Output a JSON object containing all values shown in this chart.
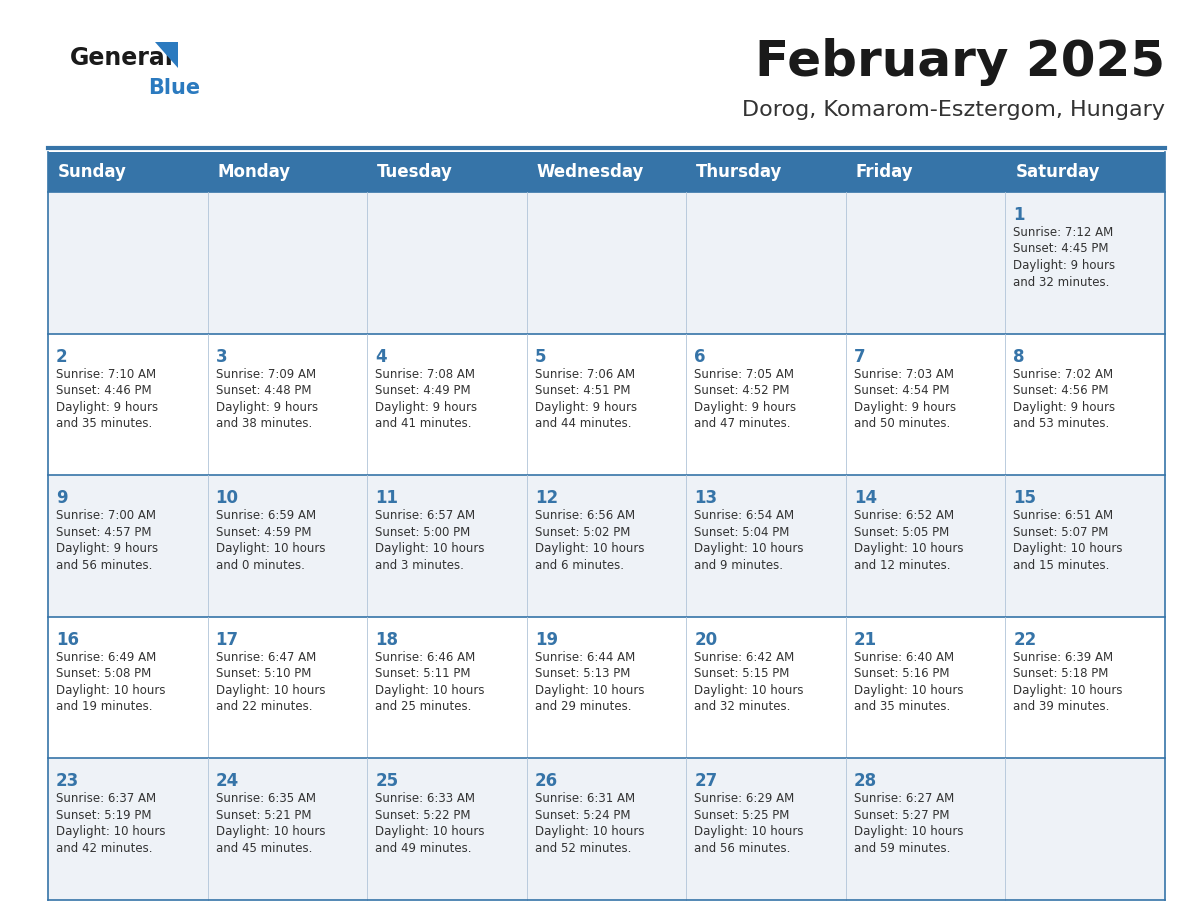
{
  "title": "February 2025",
  "subtitle": "Dorog, Komarom-Esztergom, Hungary",
  "days_of_week": [
    "Sunday",
    "Monday",
    "Tuesday",
    "Wednesday",
    "Thursday",
    "Friday",
    "Saturday"
  ],
  "header_bg": "#3674a8",
  "header_text": "#ffffff",
  "row_bg_odd": "#eef2f7",
  "row_bg_even": "#ffffff",
  "text_color": "#333333",
  "day_num_color": "#3674a8",
  "border_color": "#3674a8",
  "grid_line_color": "#b0c4d8",
  "title_color": "#1a1a1a",
  "subtitle_color": "#333333",
  "logo_general_color": "#1a1a1a",
  "logo_blue_color": "#2b7abf",
  "weeks": [
    [
      {
        "day": null,
        "info": ""
      },
      {
        "day": null,
        "info": ""
      },
      {
        "day": null,
        "info": ""
      },
      {
        "day": null,
        "info": ""
      },
      {
        "day": null,
        "info": ""
      },
      {
        "day": null,
        "info": ""
      },
      {
        "day": 1,
        "info": "Sunrise: 7:12 AM\nSunset: 4:45 PM\nDaylight: 9 hours\nand 32 minutes."
      }
    ],
    [
      {
        "day": 2,
        "info": "Sunrise: 7:10 AM\nSunset: 4:46 PM\nDaylight: 9 hours\nand 35 minutes."
      },
      {
        "day": 3,
        "info": "Sunrise: 7:09 AM\nSunset: 4:48 PM\nDaylight: 9 hours\nand 38 minutes."
      },
      {
        "day": 4,
        "info": "Sunrise: 7:08 AM\nSunset: 4:49 PM\nDaylight: 9 hours\nand 41 minutes."
      },
      {
        "day": 5,
        "info": "Sunrise: 7:06 AM\nSunset: 4:51 PM\nDaylight: 9 hours\nand 44 minutes."
      },
      {
        "day": 6,
        "info": "Sunrise: 7:05 AM\nSunset: 4:52 PM\nDaylight: 9 hours\nand 47 minutes."
      },
      {
        "day": 7,
        "info": "Sunrise: 7:03 AM\nSunset: 4:54 PM\nDaylight: 9 hours\nand 50 minutes."
      },
      {
        "day": 8,
        "info": "Sunrise: 7:02 AM\nSunset: 4:56 PM\nDaylight: 9 hours\nand 53 minutes."
      }
    ],
    [
      {
        "day": 9,
        "info": "Sunrise: 7:00 AM\nSunset: 4:57 PM\nDaylight: 9 hours\nand 56 minutes."
      },
      {
        "day": 10,
        "info": "Sunrise: 6:59 AM\nSunset: 4:59 PM\nDaylight: 10 hours\nand 0 minutes."
      },
      {
        "day": 11,
        "info": "Sunrise: 6:57 AM\nSunset: 5:00 PM\nDaylight: 10 hours\nand 3 minutes."
      },
      {
        "day": 12,
        "info": "Sunrise: 6:56 AM\nSunset: 5:02 PM\nDaylight: 10 hours\nand 6 minutes."
      },
      {
        "day": 13,
        "info": "Sunrise: 6:54 AM\nSunset: 5:04 PM\nDaylight: 10 hours\nand 9 minutes."
      },
      {
        "day": 14,
        "info": "Sunrise: 6:52 AM\nSunset: 5:05 PM\nDaylight: 10 hours\nand 12 minutes."
      },
      {
        "day": 15,
        "info": "Sunrise: 6:51 AM\nSunset: 5:07 PM\nDaylight: 10 hours\nand 15 minutes."
      }
    ],
    [
      {
        "day": 16,
        "info": "Sunrise: 6:49 AM\nSunset: 5:08 PM\nDaylight: 10 hours\nand 19 minutes."
      },
      {
        "day": 17,
        "info": "Sunrise: 6:47 AM\nSunset: 5:10 PM\nDaylight: 10 hours\nand 22 minutes."
      },
      {
        "day": 18,
        "info": "Sunrise: 6:46 AM\nSunset: 5:11 PM\nDaylight: 10 hours\nand 25 minutes."
      },
      {
        "day": 19,
        "info": "Sunrise: 6:44 AM\nSunset: 5:13 PM\nDaylight: 10 hours\nand 29 minutes."
      },
      {
        "day": 20,
        "info": "Sunrise: 6:42 AM\nSunset: 5:15 PM\nDaylight: 10 hours\nand 32 minutes."
      },
      {
        "day": 21,
        "info": "Sunrise: 6:40 AM\nSunset: 5:16 PM\nDaylight: 10 hours\nand 35 minutes."
      },
      {
        "day": 22,
        "info": "Sunrise: 6:39 AM\nSunset: 5:18 PM\nDaylight: 10 hours\nand 39 minutes."
      }
    ],
    [
      {
        "day": 23,
        "info": "Sunrise: 6:37 AM\nSunset: 5:19 PM\nDaylight: 10 hours\nand 42 minutes."
      },
      {
        "day": 24,
        "info": "Sunrise: 6:35 AM\nSunset: 5:21 PM\nDaylight: 10 hours\nand 45 minutes."
      },
      {
        "day": 25,
        "info": "Sunrise: 6:33 AM\nSunset: 5:22 PM\nDaylight: 10 hours\nand 49 minutes."
      },
      {
        "day": 26,
        "info": "Sunrise: 6:31 AM\nSunset: 5:24 PM\nDaylight: 10 hours\nand 52 minutes."
      },
      {
        "day": 27,
        "info": "Sunrise: 6:29 AM\nSunset: 5:25 PM\nDaylight: 10 hours\nand 56 minutes."
      },
      {
        "day": 28,
        "info": "Sunrise: 6:27 AM\nSunset: 5:27 PM\nDaylight: 10 hours\nand 59 minutes."
      },
      {
        "day": null,
        "info": ""
      }
    ]
  ]
}
